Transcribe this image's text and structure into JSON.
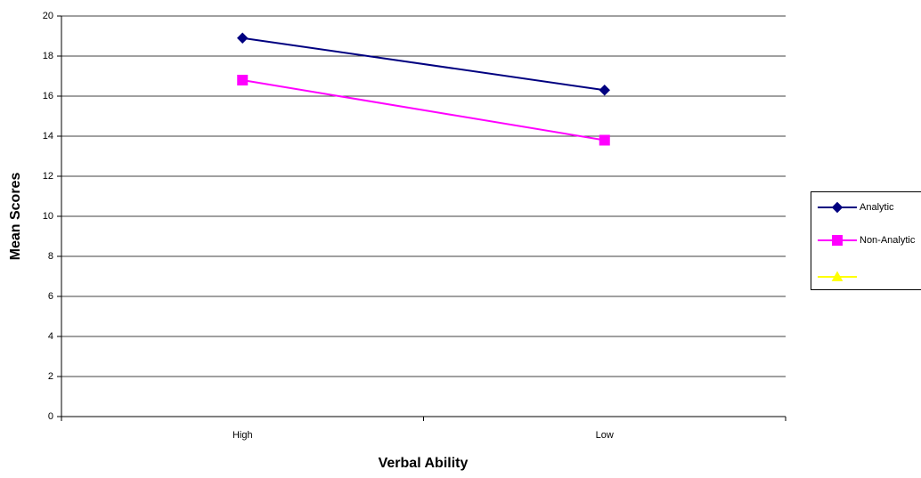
{
  "chart_data": {
    "type": "line",
    "x_label": "Verbal Ability",
    "y_label": "Mean Scores",
    "categories": [
      "High",
      "Low"
    ],
    "series": [
      {
        "name": "Analytic",
        "color": "#000080",
        "marker": "diamond",
        "values": [
          18.9,
          16.3
        ]
      },
      {
        "name": "Non-Analytic",
        "color": "#ff00ff",
        "marker": "square",
        "values": [
          16.8,
          13.8
        ]
      },
      {
        "name": null,
        "color": "#ffff00",
        "marker": "triangle",
        "values": [
          null,
          null
        ]
      }
    ],
    "ylim": [
      0,
      20
    ],
    "yticks": [
      0,
      2,
      4,
      6,
      8,
      10,
      12,
      14,
      16,
      18,
      20
    ],
    "grid": true,
    "legend": "right"
  }
}
